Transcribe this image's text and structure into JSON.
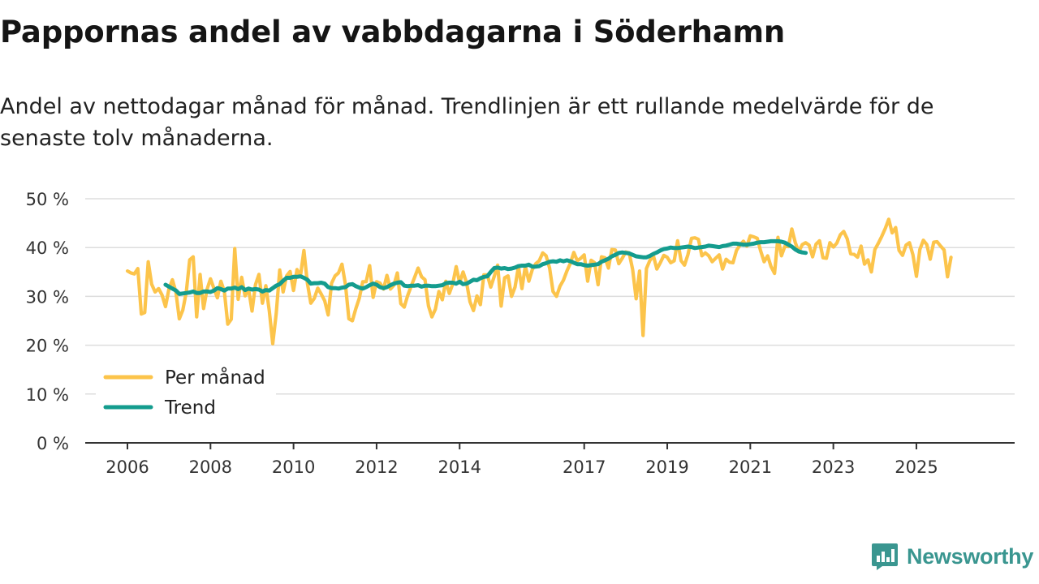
{
  "header": {
    "title": "Pappornas andel av vabbdagarna i Söderhamn",
    "subtitle": "Andel av nettodagar månad för månad. Trendlinjen är ett rullande medelvärde för de senaste tolv månaderna."
  },
  "brand": {
    "name": "Newsworthy",
    "color": "#3a9690",
    "icon": "newsworthy-logo-icon"
  },
  "colors": {
    "monthly": "#fcc44b",
    "trend": "#149c8e",
    "grid": "#dddddd",
    "axis": "#333333"
  },
  "chart_data": {
    "type": "line",
    "title": "Pappornas andel av vabbdagarna i Söderhamn",
    "xlabel": "",
    "ylabel": "",
    "ylim": [
      0,
      50
    ],
    "yticks": [
      0,
      10,
      20,
      30,
      40,
      50
    ],
    "ytick_labels": [
      "0 %",
      "10 %",
      "20 %",
      "30 %",
      "40 %",
      "50 %"
    ],
    "xlim": [
      2006.0,
      2026.33
    ],
    "xticks": [
      2006,
      2008,
      2010,
      2012,
      2014,
      2017,
      2019,
      2021,
      2023,
      2025
    ],
    "xtick_labels": [
      "2006",
      "2008",
      "2010",
      "2012",
      "2014",
      "2017",
      "2019",
      "2021",
      "2023",
      "2025"
    ],
    "legend_position": "bottom-left",
    "series": [
      {
        "name": "Per månad",
        "x_start": 2006.0,
        "step": 0.0833333,
        "values": [
          35.2,
          34.8,
          34.6,
          35.7,
          26.4,
          26.7,
          37.1,
          32.5,
          30.9,
          31.6,
          30.3,
          27.9,
          31.6,
          33.4,
          30.9,
          25.4,
          27.2,
          30.9,
          37.5,
          38.1,
          25.8,
          34.5,
          27.5,
          31.4,
          33.6,
          31.6,
          29.7,
          33.1,
          31.0,
          24.3,
          25.3,
          39.8,
          29.4,
          33.9,
          30.1,
          31.6,
          27.0,
          32.4,
          34.5,
          28.6,
          32.2,
          27.0,
          20.3,
          26.5,
          35.4,
          30.9,
          34.2,
          35.1,
          31.2,
          35.5,
          34.1,
          39.4,
          32.7,
          28.6,
          29.6,
          31.7,
          30.5,
          29.1,
          26.2,
          32.7,
          34.2,
          34.8,
          36.6,
          32.4,
          25.4,
          25.0,
          27.5,
          29.6,
          33.0,
          33.0,
          36.3,
          29.8,
          33.0,
          32.7,
          31.5,
          34.3,
          31.5,
          32.3,
          34.8,
          28.5,
          27.8,
          30.2,
          32.1,
          33.9,
          35.8,
          34.0,
          33.4,
          28.0,
          25.8,
          27.4,
          31.0,
          29.3,
          33.1,
          30.6,
          32.5,
          36.1,
          32.8,
          35.0,
          32.8,
          28.9,
          27.1,
          30.1,
          28.3,
          34.4,
          34.4,
          31.9,
          34.1,
          36.4,
          28.0,
          33.8,
          34.2,
          30.0,
          31.9,
          36.1,
          31.6,
          36.2,
          33.1,
          35.5,
          36.7,
          37.3,
          38.9,
          38.3,
          35.8,
          31.0,
          30.0,
          32.1,
          33.3,
          35.2,
          36.8,
          39.0,
          37.3,
          37.8,
          38.5,
          33.1,
          37.4,
          36.9,
          32.4,
          38.1,
          37.9,
          35.8,
          39.6,
          39.5,
          36.7,
          37.8,
          39.1,
          38.9,
          35.5,
          29.5,
          35.2,
          22.0,
          35.7,
          37.4,
          38.3,
          35.6,
          36.9,
          38.4,
          38.0,
          36.9,
          37.3,
          41.4,
          37.3,
          36.4,
          38.6,
          41.9,
          42.0,
          41.7,
          38.3,
          38.9,
          38.3,
          37.1,
          37.8,
          38.5,
          35.6,
          37.6,
          37.0,
          36.9,
          39.4,
          40.5,
          41.3,
          40.3,
          42.4,
          42.2,
          41.9,
          39.3,
          37.1,
          38.3,
          36.1,
          34.7,
          42.1,
          38.3,
          40.3,
          40.2,
          43.8,
          41.0,
          39.1,
          40.6,
          41.0,
          40.5,
          38.1,
          40.7,
          41.4,
          37.9,
          37.8,
          41.0,
          40.1,
          40.9,
          42.6,
          43.3,
          41.8,
          38.7,
          38.6,
          38.0,
          40.3,
          36.6,
          37.5,
          35.0,
          39.6,
          40.9,
          42.3,
          43.9,
          45.8,
          43.0,
          44.1,
          39.4,
          38.4,
          40.5,
          41.0,
          38.5,
          34.1,
          39.6,
          41.5,
          40.6,
          37.6,
          41.1,
          41.2,
          40.3,
          39.5,
          34.0,
          38.0
        ]
      },
      {
        "name": "Trend",
        "x_start": 2006.917,
        "step": 0.0833333,
        "values": [
          32.4,
          32.0,
          31.6,
          31.2,
          30.5,
          30.6,
          30.7,
          30.8,
          31.0,
          30.7,
          30.7,
          31.0,
          31.0,
          30.9,
          31.2,
          31.7,
          31.5,
          31.2,
          31.6,
          31.6,
          31.8,
          31.5,
          31.9,
          31.3,
          31.6,
          31.4,
          31.5,
          31.4,
          31.0,
          31.3,
          31.2,
          31.7,
          32.2,
          32.5,
          33.2,
          33.8,
          33.8,
          34.0,
          34.0,
          34.1,
          33.8,
          33.4,
          32.6,
          32.7,
          32.7,
          32.8,
          32.6,
          31.9,
          31.7,
          31.7,
          31.6,
          31.8,
          31.9,
          32.4,
          32.5,
          32.1,
          31.8,
          31.6,
          31.9,
          32.3,
          32.6,
          32.4,
          31.9,
          31.7,
          31.9,
          32.3,
          32.6,
          32.8,
          32.9,
          32.2,
          32.1,
          32.2,
          32.2,
          32.3,
          32.0,
          32.2,
          32.2,
          32.1,
          32.1,
          32.2,
          32.3,
          32.7,
          32.8,
          32.8,
          32.6,
          33.0,
          32.5,
          32.6,
          33.0,
          33.4,
          33.3,
          33.7,
          34.0,
          34.1,
          35.0,
          35.8,
          35.9,
          35.7,
          35.8,
          35.6,
          35.7,
          35.9,
          36.2,
          36.3,
          36.3,
          36.5,
          36.1,
          36.1,
          36.2,
          36.6,
          36.8,
          37.1,
          37.2,
          37.1,
          37.4,
          37.2,
          37.4,
          37.2,
          36.9,
          36.6,
          36.6,
          36.4,
          36.3,
          36.4,
          36.5,
          36.6,
          37.1,
          37.4,
          37.7,
          38.2,
          38.5,
          38.9,
          39.0,
          38.9,
          38.8,
          38.5,
          38.2,
          38.1,
          38.0,
          38.0,
          38.3,
          38.7,
          39.0,
          39.4,
          39.7,
          39.8,
          40.0,
          39.9,
          39.9,
          40.0,
          40.1,
          40.2,
          40.1,
          39.9,
          40.0,
          40.1,
          40.2,
          40.4,
          40.3,
          40.2,
          40.1,
          40.3,
          40.4,
          40.6,
          40.8,
          40.8,
          40.7,
          40.6,
          40.6,
          40.7,
          40.8,
          41.0,
          41.1,
          41.1,
          41.2,
          41.3,
          41.3,
          41.3,
          41.2,
          41.0,
          40.6,
          40.2,
          39.6,
          39.2,
          39.0,
          38.9
        ]
      }
    ]
  }
}
